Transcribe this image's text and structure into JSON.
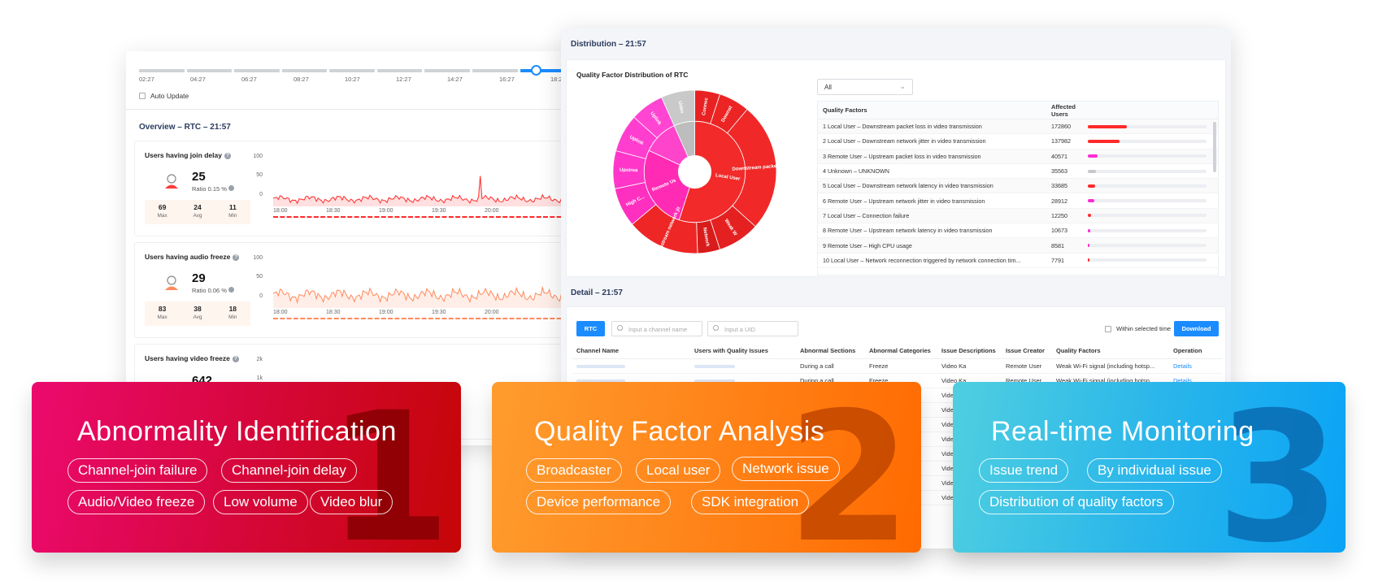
{
  "overview_window": {
    "timeline": {
      "labels": [
        "02:27",
        "04:27",
        "06:27",
        "08:27",
        "10:27",
        "12:27",
        "14:27",
        "16:27",
        "18:27"
      ],
      "auto_update_label": "Auto Update"
    },
    "title": "Overview – RTC – 21:57",
    "metrics": [
      {
        "title": "Users having join delay",
        "value": "25",
        "ratio": "Ratio 0.15 %",
        "stats": [
          {
            "value": "69",
            "label": "Max"
          },
          {
            "value": "24",
            "label": "Avg"
          },
          {
            "value": "11",
            "label": "Min"
          }
        ],
        "y_ticks": [
          "100",
          "50",
          "0"
        ],
        "x_ticks": [
          "18:00",
          "18:30",
          "19:00",
          "19:30",
          "20:00"
        ]
      },
      {
        "title": "Users having audio freeze",
        "value": "29",
        "ratio": "Ratio 0.06 %",
        "stats": [
          {
            "value": "83",
            "label": "Max"
          },
          {
            "value": "38",
            "label": "Avg"
          },
          {
            "value": "18",
            "label": "Min"
          }
        ],
        "y_ticks": [
          "100",
          "50",
          "0"
        ],
        "x_ticks": [
          "18:00",
          "18:30",
          "19:00",
          "19:30",
          "20:00"
        ]
      },
      {
        "title": "Users having video freeze",
        "value": "642",
        "y_ticks": [
          "2k",
          "1k"
        ]
      }
    ]
  },
  "distribution_window": {
    "title": "Distribution – 21:57",
    "chart_title": "Quality Factor Distribution of RTC",
    "filter_value": "All",
    "sunburst_labels": [
      "Downst",
      "Connec",
      "Unkn",
      "Uplink",
      "Upstrea",
      "Uplink",
      "Remote Us",
      "High C...",
      "Downstream packet loss",
      "Local User",
      "Downstream network jit",
      "Network",
      "Weak W"
    ],
    "table_headers": {
      "factor": "Quality Factors",
      "users": "Affected Users"
    },
    "rows": [
      {
        "factor": "1 Local User – Downstream packet loss in video transmission",
        "users": "172860",
        "share": 0.33,
        "color": "#ff2a2a"
      },
      {
        "factor": "2 Local User – Downstream network jitter in video transmission",
        "users": "137982",
        "share": 0.27,
        "color": "#ff2a2a"
      },
      {
        "factor": "3 Remote User – Upstream packet loss in video transmission",
        "users": "40571",
        "share": 0.08,
        "color": "#ff2bd5"
      },
      {
        "factor": "4 Unknown – UNKNOWN",
        "users": "35563",
        "share": 0.07,
        "color": "#c8c8c8"
      },
      {
        "factor": "5 Local User – Downstream network latency in video transmission",
        "users": "33685",
        "share": 0.065,
        "color": "#ff2a2a"
      },
      {
        "factor": "6 Remote User – Upstream network jitter in video transmission",
        "users": "28912",
        "share": 0.055,
        "color": "#ff2bd5"
      },
      {
        "factor": "7 Local User – Connection failure",
        "users": "12250",
        "share": 0.025,
        "color": "#ff2a2a"
      },
      {
        "factor": "8 Remote User – Upstream network latency in video transmission",
        "users": "10673",
        "share": 0.02,
        "color": "#ff2bd5"
      },
      {
        "factor": "9 Remote User – High CPU usage",
        "users": "8581",
        "share": 0.017,
        "color": "#ff2bd5"
      },
      {
        "factor": "10 Local User – Network reconnection triggered by network connection tim...",
        "users": "7791",
        "share": 0.015,
        "color": "#ff2a2a"
      }
    ]
  },
  "detail": {
    "title": "Detail – 21:57",
    "rtc_button": "RTC",
    "channel_placeholder": "Input a channel name",
    "uid_placeholder": "Input a UID",
    "within_label": "Within selected time",
    "download_button": "Download",
    "headers": [
      "Channel Name",
      "Users with Quality Issues",
      "Abnormal Sections",
      "Abnormal Categories",
      "Issue Descriptions",
      "Issue Creator",
      "Quality Factors",
      "Operation"
    ],
    "rows": [
      {
        "section": "During a call",
        "category": "Freeze",
        "description": "Video Ka",
        "creator": "Remote User",
        "factor": "Weak Wi-Fi signal (including hotsp...",
        "op": "Details"
      },
      {
        "section": "During a call",
        "category": "Freeze",
        "description": "Video Ka",
        "creator": "Remote User",
        "factor": "Weak Wi-Fi signal (including hotsp...",
        "op": "Details"
      },
      {
        "section": "",
        "category": "",
        "description": "Video",
        "creator": "",
        "factor": "",
        "op": ""
      },
      {
        "section": "",
        "category": "",
        "description": "Video",
        "creator": "",
        "factor": "",
        "op": ""
      },
      {
        "section": "",
        "category": "",
        "description": "Video",
        "creator": "",
        "factor": "",
        "op": ""
      },
      {
        "section": "",
        "category": "",
        "description": "Video",
        "creator": "",
        "factor": "",
        "op": ""
      },
      {
        "section": "",
        "category": "",
        "description": "Video",
        "creator": "",
        "factor": "",
        "op": ""
      },
      {
        "section": "",
        "category": "",
        "description": "Video",
        "creator": "",
        "factor": "",
        "op": ""
      },
      {
        "section": "",
        "category": "",
        "description": "Video",
        "creator": "",
        "factor": "",
        "op": ""
      },
      {
        "section": "",
        "category": "",
        "description": "Video",
        "creator": "",
        "factor": "",
        "op": ""
      }
    ]
  },
  "cards": [
    {
      "number": "1",
      "title": "Abnormality Identification",
      "tags": [
        "Channel-join failure",
        "Channel-join delay",
        "Audio/Video freeze",
        "Low volume",
        "Video blur"
      ]
    },
    {
      "number": "2",
      "title": "Quality Factor Analysis",
      "tags": [
        "Broadcaster",
        "Local user",
        "Network issue",
        "Device performance",
        "SDK integration"
      ]
    },
    {
      "number": "3",
      "title": "Real-time Monitoring",
      "tags": [
        "Issue trend",
        "By individual issue",
        "Distribution of quality factors"
      ]
    }
  ],
  "colors": {
    "accent_blue": "#1a8cff",
    "series_red": "#ff2a2a",
    "series_orange": "#ff8a5c",
    "pink": "#ff2bd5"
  }
}
